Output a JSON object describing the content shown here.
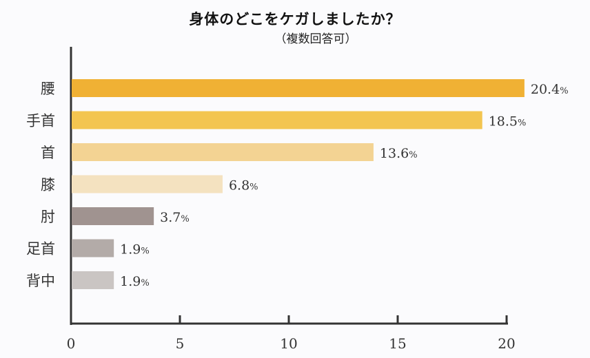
{
  "chart_data": {
    "type": "bar",
    "orientation": "horizontal",
    "title": "身体のどこをケガしましたか？",
    "subtitle": "（複数回答可）",
    "categories": [
      "腰",
      "手首",
      "首",
      "膝",
      "肘",
      "足首",
      "背中"
    ],
    "values": [
      20.4,
      18.5,
      13.6,
      6.8,
      3.7,
      1.9,
      1.9
    ],
    "value_labels": [
      "20.4",
      "18.5",
      "13.6",
      "6.8",
      "3.7",
      "1.9",
      "1.9"
    ],
    "unit": "%",
    "colors": [
      "#f0b134",
      "#f3c550",
      "#f3d393",
      "#f4e2c0",
      "#a09390",
      "#b3aba8",
      "#cac5c3"
    ],
    "xlim": [
      0,
      20
    ],
    "xticks": [
      0,
      5,
      10,
      15,
      20
    ],
    "xlabel": "",
    "ylabel": "",
    "grid": false
  }
}
